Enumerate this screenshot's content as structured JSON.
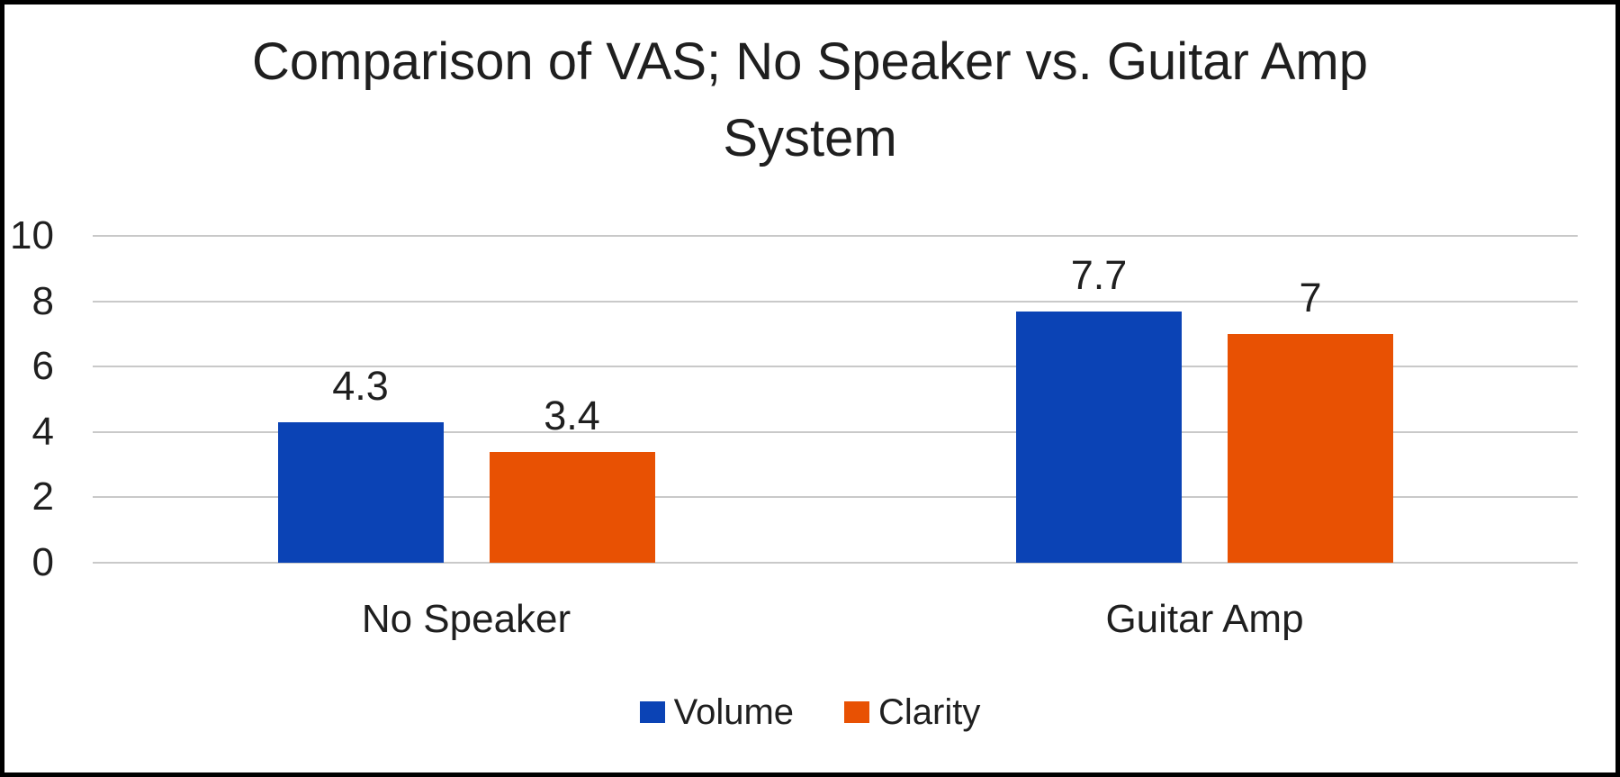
{
  "chart_data": {
    "type": "bar",
    "title": "Comparison of VAS; No Speaker vs. Guitar Amp System",
    "title_lines": [
      "Comparison of VAS; No Speaker vs. Guitar Amp",
      "System"
    ],
    "categories": [
      "No Speaker",
      "Guitar Amp"
    ],
    "series": [
      {
        "name": "Volume",
        "color": "#0B43B5",
        "values": [
          4.3,
          7.7
        ],
        "labels": [
          "4.3",
          "7.7"
        ]
      },
      {
        "name": "Clarity",
        "color": "#E85103",
        "values": [
          3.4,
          7.0
        ],
        "labels": [
          "3.4",
          "7"
        ]
      }
    ],
    "xlabel": "",
    "ylabel": "",
    "ylim": [
      0,
      10
    ],
    "yticks": [
      "0",
      "2",
      "4",
      "6",
      "8",
      "10"
    ],
    "grid": true,
    "legend_position": "bottom",
    "data_labels_shown": true
  },
  "colors": {
    "gridline": "#C9C9C9",
    "text": "#1F1F1F",
    "background": "#FFFFFF",
    "frame": "#000000"
  }
}
